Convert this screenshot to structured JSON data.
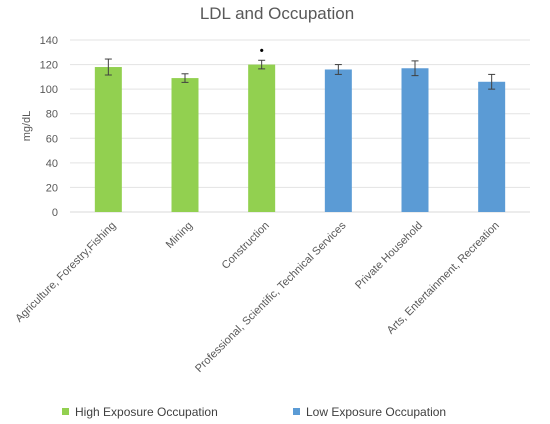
{
  "chart_data": {
    "type": "bar",
    "title": "LDL and Occupation",
    "ylabel": "mg/dL",
    "xlabel": "",
    "ylim": [
      0,
      140
    ],
    "yticks": [
      0,
      20,
      40,
      60,
      80,
      100,
      120,
      140
    ],
    "grid": true,
    "legend_position": "bottom",
    "categories": [
      "Agriculture, Forestry,Fishing",
      "Mining",
      "Construction",
      "Professional, Scientific, Technical Services",
      "Private Household",
      "Arts, Entertainment, Recreation"
    ],
    "values": [
      118,
      109,
      120,
      116,
      117,
      106
    ],
    "error": [
      6.5,
      3.5,
      3.5,
      4,
      6,
      6
    ],
    "group": [
      "High Exposure Occupation",
      "High Exposure Occupation",
      "High Exposure Occupation",
      "Low Exposure Occupation",
      "Low Exposure Occupation",
      "Low Exposure Occupation"
    ],
    "annotations": [
      {
        "category": "Construction",
        "text": "•"
      }
    ],
    "legend": [
      {
        "name": "High Exposure Occupation",
        "color": "#92d050"
      },
      {
        "name": "Low Exposure Occupation",
        "color": "#5b9bd5"
      }
    ]
  }
}
